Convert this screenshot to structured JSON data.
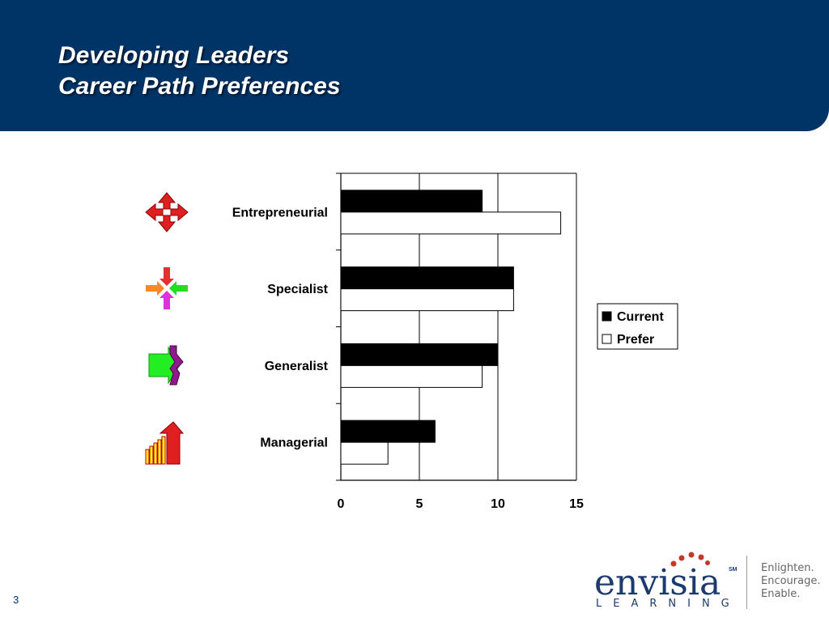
{
  "slide": {
    "title_line1": "Developing Leaders",
    "title_line2": "Career Path Preferences",
    "page_number": "3"
  },
  "logo": {
    "wordmark": "envisia",
    "service_mark": "SM",
    "subline": "LEARNING",
    "tagline": [
      "Enlighten.",
      "Encourage.",
      "Enable."
    ]
  },
  "colors": {
    "header_bg": "#003366",
    "current_fill": "#000000",
    "prefer_fill": "#ffffff",
    "logo_navy": "#1c3a6e",
    "logo_dot_red": "#c0392b"
  },
  "chart_data": {
    "type": "bar",
    "orientation": "horizontal",
    "categories": [
      "Entrepreneurial",
      "Specialist",
      "Generalist",
      "Managerial"
    ],
    "category_icons": [
      "four-way-arrows-icon",
      "converging-arrows-icon",
      "merging-arrows-icon",
      "rising-bars-arrow-icon"
    ],
    "series": [
      {
        "name": "Current",
        "values": [
          9,
          11,
          10,
          6
        ]
      },
      {
        "name": "Prefer",
        "values": [
          14,
          11,
          9,
          3
        ]
      }
    ],
    "xlim": [
      0,
      15
    ],
    "x_ticks": [
      "0",
      "5",
      "10",
      "15"
    ],
    "grid": "vertical",
    "legend_position": "right"
  }
}
